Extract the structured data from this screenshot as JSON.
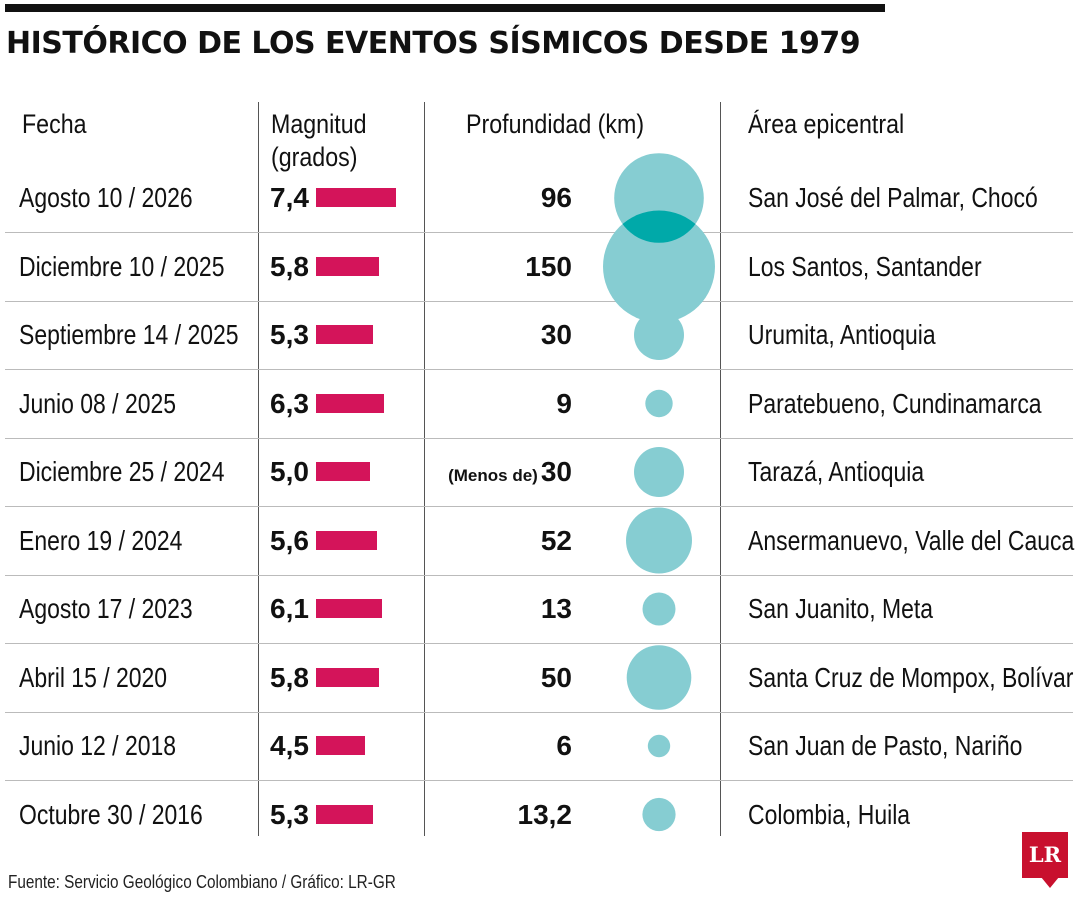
{
  "title": "HISTÓRICO DE LOS EVENTOS SÍSMICOS DESDE 1979",
  "source": "Fuente: Servicio Geológico Colombiano / Gráfico: LR-GR",
  "logo": "LR",
  "colors": {
    "bar": "#d4145a",
    "bubble": "#86cdd2",
    "overlap": "#00a9a9",
    "logo": "#c8102e"
  },
  "chart_data": {
    "type": "table",
    "title": "HISTÓRICO DE LOS EVENTOS SÍSMICOS DESDE 1979",
    "columns": [
      "Fecha",
      "Magnitud (grados)",
      "Profundidad (km)",
      "Área epicentral"
    ],
    "magnitude_max": 7.4,
    "depth_max": 150,
    "rows": [
      {
        "fecha": "Agosto 10 / 2026",
        "magnitud": 7.4,
        "magnitud_label": "7,4",
        "profundidad": 96,
        "profundidad_label": "96",
        "prefijo": "",
        "area": "San José del Palmar, Chocó"
      },
      {
        "fecha": "Diciembre 10 / 2025",
        "magnitud": 5.8,
        "magnitud_label": "5,8",
        "profundidad": 150,
        "profundidad_label": "150",
        "prefijo": "",
        "area": "Los Santos, Santander"
      },
      {
        "fecha": "Septiembre 14 / 2025",
        "magnitud": 5.3,
        "magnitud_label": "5,3",
        "profundidad": 30,
        "profundidad_label": "30",
        "prefijo": "",
        "area": "Urumita, Antioquia"
      },
      {
        "fecha": "Junio 08 / 2025",
        "magnitud": 6.3,
        "magnitud_label": "6,3",
        "profundidad": 9,
        "profundidad_label": "9",
        "prefijo": "",
        "area": "Paratebueno, Cundinamarca"
      },
      {
        "fecha": "Diciembre 25 / 2024",
        "magnitud": 5.0,
        "magnitud_label": "5,0",
        "profundidad": 30,
        "profundidad_label": "30",
        "prefijo": "(Menos de)",
        "area": "Tarazá, Antioquia"
      },
      {
        "fecha": "Enero 19 / 2024",
        "magnitud": 5.6,
        "magnitud_label": "5,6",
        "profundidad": 52,
        "profundidad_label": "52",
        "prefijo": "",
        "area": "Ansermanuevo, Valle del Cauca"
      },
      {
        "fecha": "Agosto 17 / 2023",
        "magnitud": 6.1,
        "magnitud_label": "6,1",
        "profundidad": 13,
        "profundidad_label": "13",
        "prefijo": "",
        "area": "San Juanito, Meta"
      },
      {
        "fecha": "Abril 15 / 2020",
        "magnitud": 5.8,
        "magnitud_label": "5,8",
        "profundidad": 50,
        "profundidad_label": "50",
        "prefijo": "",
        "area": "Santa Cruz de Mompox, Bolívar"
      },
      {
        "fecha": "Junio 12 / 2018",
        "magnitud": 4.5,
        "magnitud_label": "4,5",
        "profundidad": 6,
        "profundidad_label": "6",
        "prefijo": "",
        "area": "San Juan de Pasto, Nariño"
      },
      {
        "fecha": "Octubre 30 / 2016",
        "magnitud": 5.3,
        "magnitud_label": "5,3",
        "profundidad": 13.2,
        "profundidad_label": "13,2",
        "prefijo": "",
        "area": "Colombia, Huila"
      }
    ]
  }
}
